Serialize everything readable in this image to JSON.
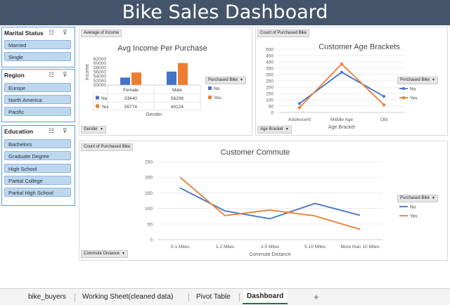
{
  "title": "Bike Sales Dashboard",
  "slicers": {
    "marital": {
      "title": "Marital Status",
      "items": [
        "Married",
        "Single"
      ]
    },
    "region": {
      "title": "Region",
      "items": [
        "Europe",
        "North America",
        "Pacific"
      ]
    },
    "education": {
      "title": "Education",
      "items": [
        "Bachelors",
        "Graduate Degree",
        "High School",
        "Partial College",
        "Partial High School"
      ]
    }
  },
  "colors": {
    "no": "#4472c4",
    "yes": "#ed7d31",
    "header": "#44546a",
    "slicer_item": "#bdd7ee"
  },
  "income_chart": {
    "field_value": "Average of Income",
    "field_axis": "Gender",
    "title": "Avg Income Per Purchase",
    "ylabel": "Income",
    "xlabel": "Gender",
    "legend_title": "Purchased Bike",
    "table": {
      "cols": [
        "Female",
        "Male"
      ],
      "rows": [
        {
          "label": "No",
          "values": [
            "53440",
            "56208"
          ]
        },
        {
          "label": "Yes",
          "values": [
            "55774",
            "60124"
          ]
        }
      ]
    }
  },
  "age_chart": {
    "field_value": "Count of Purchased Bike",
    "field_axis": "Age Bracket",
    "title": "Customer Age Brackets",
    "xlabel": "Age Bracket",
    "legend_title": "Purchased Bike"
  },
  "commute_chart": {
    "field_value": "Count of Purchased Bike",
    "field_axis": "Commute Distance",
    "title": "Customer Commute",
    "xlabel": "Commute Distance",
    "legend_title": "Purchased Bike"
  },
  "chart_data": [
    {
      "type": "bar",
      "title": "Avg Income Per Purchase",
      "xlabel": "Gender",
      "ylabel": "Income",
      "categories": [
        "Female",
        "Male"
      ],
      "series": [
        {
          "name": "No",
          "values": [
            53440,
            56208
          ]
        },
        {
          "name": "Yes",
          "values": [
            55774,
            60124
          ]
        }
      ],
      "ylim": [
        50000,
        62000
      ],
      "yticks": [
        50000,
        52000,
        54000,
        56000,
        58000,
        60000,
        62000
      ],
      "legend": "right"
    },
    {
      "type": "line",
      "title": "Customer Age Brackets",
      "xlabel": "Age Bracket",
      "categories": [
        "Adolescent",
        "Middle Age",
        "Old"
      ],
      "series": [
        {
          "name": "No",
          "values": [
            71,
            318,
            127
          ]
        },
        {
          "name": "Yes",
          "values": [
            39,
            383,
            60
          ]
        }
      ],
      "ylim": [
        0,
        500
      ],
      "yticks": [
        0,
        50,
        100,
        150,
        200,
        250,
        300,
        350,
        400,
        450,
        500
      ],
      "grid": true,
      "legend": "right"
    },
    {
      "type": "line",
      "title": "Customer Commute",
      "xlabel": "Commute Distance",
      "categories": [
        "0-1 Miles",
        "1-2 Miles",
        "2-5 Miles",
        "5-10 Miles",
        "More than 10 Miles"
      ],
      "series": [
        {
          "name": "No",
          "values": [
            166,
            92,
            67,
            116,
            78
          ]
        },
        {
          "name": "Yes",
          "values": [
            200,
            77,
            95,
            76,
            33
          ]
        }
      ],
      "ylim": [
        0,
        250
      ],
      "yticks": [
        0,
        50,
        100,
        150,
        200,
        250
      ],
      "grid": true,
      "legend": "right"
    }
  ],
  "tabs": {
    "items": [
      "bike_buyers",
      "Working Sheet(cleaned data)",
      "Pivot Table",
      "Dashboard"
    ],
    "add": "+"
  }
}
